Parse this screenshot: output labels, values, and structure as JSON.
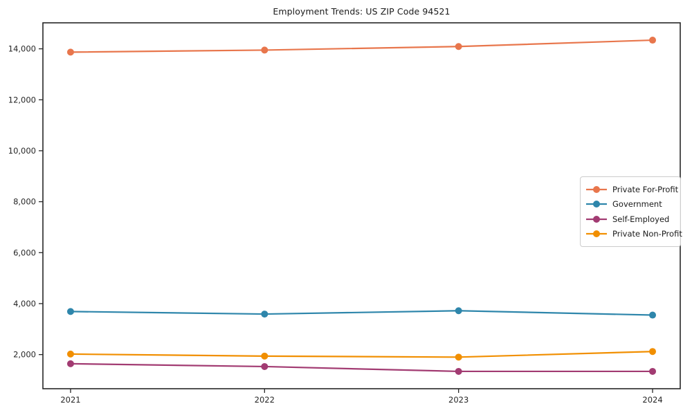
{
  "title": "Employment Trends: US ZIP Code 94521",
  "chart_data": {
    "type": "line",
    "title": "Employment Trends: US ZIP Code 94521",
    "x": [
      "2021",
      "2022",
      "2023",
      "2024"
    ],
    "xlabel": "",
    "ylabel": "",
    "ylim": [
      660,
      15020
    ],
    "yticks": [
      2000,
      4000,
      6000,
      8000,
      10000,
      12000,
      14000
    ],
    "grid": false,
    "legend_position": "center-right",
    "marker": "circle",
    "series": [
      {
        "name": "Private For-Profit",
        "color": "#E8764C",
        "values": [
          13870,
          13950,
          14090,
          14340
        ]
      },
      {
        "name": "Government",
        "color": "#2E86AB",
        "values": [
          3690,
          3590,
          3720,
          3550
        ]
      },
      {
        "name": "Self-Employed",
        "color": "#A23B72",
        "values": [
          1640,
          1530,
          1340,
          1340
        ]
      },
      {
        "name": "Private Non-Profit",
        "color": "#F18F01",
        "values": [
          2020,
          1940,
          1900,
          2120
        ]
      }
    ]
  },
  "colors": {
    "frame": "#262626",
    "tick_label": "#262626",
    "background": "#ffffff",
    "legend_border": "#cccccc"
  }
}
